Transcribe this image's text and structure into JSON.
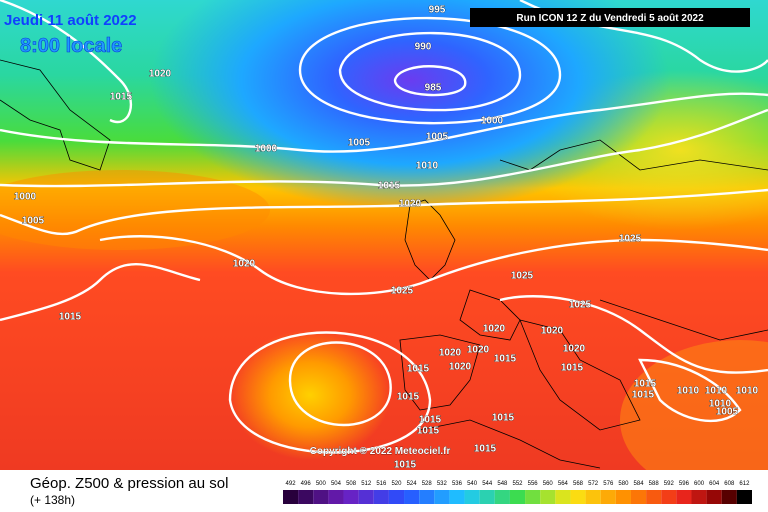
{
  "header": {
    "date": "Jeudi 11 août 2022",
    "time": "8:00 locale",
    "run": "Run ICON 12 Z du Vendredi 5 août 2022"
  },
  "copyright": "Copyright © 2022 Meteociel.fr",
  "footer": {
    "title": "Géop. Z500 & pression au sol",
    "lead": "(+ 138h)"
  },
  "scale": [
    492,
    496,
    500,
    504,
    508,
    512,
    516,
    520,
    524,
    528,
    532,
    536,
    540,
    544,
    548,
    552,
    556,
    560,
    564,
    568,
    572,
    576,
    580,
    584,
    588,
    592,
    596,
    600,
    604,
    608,
    612
  ],
  "isobar_labels": [
    995,
    990,
    985,
    1020,
    1015,
    1000,
    1005,
    1005,
    1000,
    1010,
    1015,
    1000,
    1020,
    1005,
    1025,
    1020,
    1025,
    1025,
    1025,
    1015,
    1020,
    1020,
    1020,
    1020,
    1015,
    1020,
    1015,
    1020,
    1015,
    1015,
    1015,
    1010,
    1010,
    1010,
    1015,
    1010,
    1005,
    1015,
    1015,
    1015,
    1015,
    1015
  ]
}
